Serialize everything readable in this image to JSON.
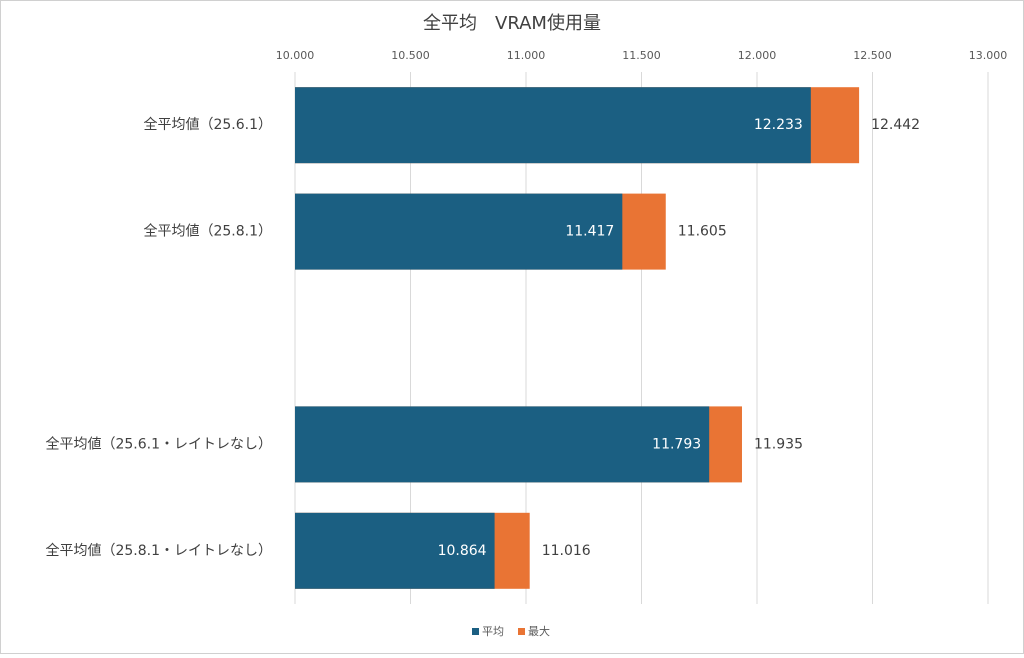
{
  "chart_data": {
    "type": "bar",
    "orientation": "horizontal",
    "title": "全平均　VRAM使用量",
    "categories": [
      "全平均値（25.6.1）",
      "全平均値（25.8.1）",
      null,
      "全平均値（25.6.1・レイトレなし）",
      "全平均値（25.8.1・レイトレなし）"
    ],
    "series": [
      {
        "name": "最大",
        "color": "#e97434",
        "values": [
          12.442,
          11.605,
          null,
          11.935,
          11.016
        ]
      },
      {
        "name": "平均",
        "color": "#1b5f82",
        "values": [
          12.233,
          11.417,
          null,
          11.793,
          10.864
        ]
      }
    ],
    "xlim": [
      10,
      13
    ],
    "xticks": [
      {
        "value": 10,
        "label": "10.000"
      },
      {
        "value": 10.5,
        "label": "10.500"
      },
      {
        "value": 11,
        "label": "11.000"
      },
      {
        "value": 11.5,
        "label": "11.500"
      },
      {
        "value": 12,
        "label": "12.000"
      },
      {
        "value": 12.5,
        "label": "12.500"
      },
      {
        "value": 13,
        "label": "13.000"
      }
    ],
    "grid": true,
    "legend": "bottom"
  }
}
